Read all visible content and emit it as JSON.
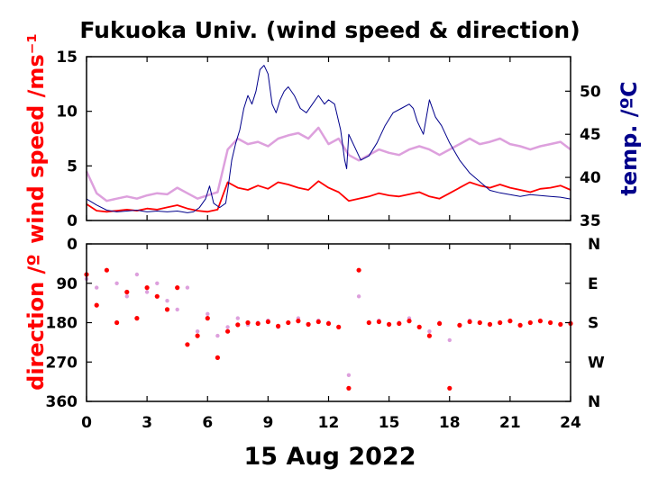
{
  "chart_data": [
    {
      "type": "line",
      "title": "Fukuoka Univ. (wind speed & direction)",
      "ylabel": "wind speed /ms⁻¹",
      "y2label": "temp. /ºC",
      "xlabel": "15 Aug 2022",
      "xlim": [
        0,
        24
      ],
      "ylim": [
        0,
        15
      ],
      "y2lim": [
        35,
        54
      ],
      "xticks": [
        "0",
        "3",
        "6",
        "9",
        "12",
        "15",
        "18",
        "21",
        "24"
      ],
      "yticks": [
        "0",
        "5",
        "10",
        "15"
      ],
      "y2ticks": [
        "35",
        "40",
        "45",
        "50"
      ],
      "series": [
        {
          "axis": "left",
          "color": "#dda0dd",
          "x": [
            0,
            0.5,
            1,
            1.5,
            2,
            2.5,
            3,
            3.5,
            4,
            4.5,
            5,
            5.5,
            6,
            6.5,
            7,
            7.5,
            8,
            8.5,
            9,
            9.5,
            10,
            10.5,
            11,
            11.5,
            12,
            12.5,
            13,
            13.5,
            14,
            14.5,
            15,
            15.5,
            16,
            16.5,
            17,
            17.5,
            18,
            18.5,
            19,
            19.5,
            20,
            20.5,
            21,
            21.5,
            22,
            22.5,
            23,
            23.5,
            24
          ],
          "values": [
            4.5,
            2.5,
            1.8,
            2.0,
            2.2,
            2.0,
            2.3,
            2.5,
            2.4,
            3.0,
            2.5,
            2.0,
            2.3,
            2.6,
            6.5,
            7.5,
            7.0,
            7.2,
            6.8,
            7.5,
            7.8,
            8.0,
            7.5,
            8.5,
            7.0,
            7.5,
            6.0,
            5.5,
            6.0,
            6.5,
            6.2,
            6.0,
            6.5,
            6.8,
            6.5,
            6.0,
            6.5,
            7.0,
            7.5,
            7.0,
            7.2,
            7.5,
            7.0,
            6.8,
            6.5,
            6.8,
            7.0,
            7.2,
            6.5
          ]
        },
        {
          "axis": "left",
          "color": "#ff0000",
          "x": [
            0,
            0.5,
            1,
            1.5,
            2,
            2.5,
            3,
            3.5,
            4,
            4.5,
            5,
            5.5,
            6,
            6.5,
            7,
            7.5,
            8,
            8.5,
            9,
            9.5,
            10,
            10.5,
            11,
            11.5,
            12,
            12.5,
            13,
            13.5,
            14,
            14.5,
            15,
            15.5,
            16,
            16.5,
            17,
            17.5,
            18,
            18.5,
            19,
            19.5,
            20,
            20.5,
            21,
            21.5,
            22,
            22.5,
            23,
            23.5,
            24
          ],
          "values": [
            1.5,
            0.9,
            0.8,
            0.9,
            1.0,
            0.9,
            1.1,
            1.0,
            1.2,
            1.4,
            1.1,
            0.9,
            0.8,
            1.0,
            3.5,
            3.0,
            2.8,
            3.2,
            2.9,
            3.5,
            3.3,
            3.0,
            2.8,
            3.6,
            3.0,
            2.6,
            1.8,
            2.0,
            2.2,
            2.5,
            2.3,
            2.2,
            2.4,
            2.6,
            2.2,
            2.0,
            2.5,
            3.0,
            3.5,
            3.2,
            3.0,
            3.3,
            3.0,
            2.8,
            2.6,
            2.9,
            3.0,
            3.2,
            2.8
          ]
        },
        {
          "axis": "right",
          "color": "#00008b",
          "x": [
            0,
            0.5,
            1,
            1.5,
            2,
            2.5,
            3,
            3.5,
            4,
            4.5,
            5,
            5.3,
            5.6,
            5.9,
            6.1,
            6.3,
            6.6,
            6.9,
            7.0,
            7.2,
            7.4,
            7.6,
            7.8,
            8.0,
            8.2,
            8.4,
            8.6,
            8.8,
            9.0,
            9.2,
            9.4,
            9.6,
            9.8,
            10.0,
            10.3,
            10.6,
            10.9,
            11.2,
            11.5,
            11.8,
            12.0,
            12.3,
            12.6,
            12.8,
            12.9,
            13.0,
            13.1,
            13.3,
            13.6,
            14.0,
            14.4,
            14.8,
            15.2,
            15.6,
            16.0,
            16.2,
            16.4,
            16.7,
            17.0,
            17.3,
            17.6,
            18.0,
            18.5,
            19.0,
            19.5,
            20.0,
            20.5,
            21.0,
            21.5,
            22.0,
            22.5,
            23.0,
            23.5,
            24
          ],
          "values": [
            37.5,
            36.8,
            36.2,
            36.0,
            36.1,
            36.2,
            36.0,
            36.1,
            36.0,
            36.1,
            35.9,
            36.0,
            36.5,
            37.5,
            39.0,
            37.0,
            36.5,
            37.0,
            38.5,
            42.0,
            44.0,
            45.5,
            48.0,
            49.5,
            48.5,
            50.0,
            52.5,
            53.0,
            52.0,
            48.5,
            47.5,
            49.0,
            50.0,
            50.5,
            49.5,
            48.0,
            47.5,
            48.5,
            49.5,
            48.5,
            49.0,
            48.5,
            45.5,
            42.0,
            41.0,
            45.0,
            44.5,
            43.5,
            42.0,
            42.5,
            44.0,
            46.0,
            47.5,
            48.0,
            48.5,
            48.0,
            46.5,
            45.0,
            49.0,
            47.0,
            46.0,
            44.0,
            42.0,
            40.5,
            39.5,
            38.5,
            38.2,
            38.0,
            37.8,
            38.0,
            37.9,
            37.8,
            37.7,
            37.5
          ]
        }
      ]
    },
    {
      "type": "scatter",
      "ylabel": "direction /º",
      "xlabel": "15 Aug 2022",
      "xlim": [
        0,
        24
      ],
      "ylim": [
        360,
        0
      ],
      "xticks": [
        "0",
        "3",
        "6",
        "9",
        "12",
        "15",
        "18",
        "21",
        "24"
      ],
      "yticks": [
        "0",
        "90",
        "180",
        "270",
        "360"
      ],
      "y2ticks": [
        "N",
        "E",
        "S",
        "W",
        "N"
      ],
      "series": [
        {
          "color": "#dda0dd",
          "x": [
            0,
            0.5,
            1,
            1.5,
            2,
            2.5,
            3,
            3.5,
            4,
            4.5,
            5,
            5.5,
            6,
            6.5,
            7,
            7.5,
            8,
            8.5,
            9,
            9.5,
            10,
            10.5,
            11,
            11.5,
            12,
            12.5,
            13,
            13.5,
            14,
            14.5,
            15,
            15.5,
            16,
            16.5,
            17,
            17.5,
            18,
            18.5,
            19,
            19.5,
            20,
            20.5,
            21,
            21.5,
            22,
            22.5,
            23,
            23.5,
            24
          ],
          "values": [
            80,
            100,
            60,
            90,
            120,
            70,
            110,
            90,
            130,
            150,
            100,
            200,
            160,
            210,
            190,
            170,
            185,
            180,
            175,
            190,
            180,
            170,
            185,
            175,
            180,
            190,
            300,
            120,
            180,
            175,
            185,
            180,
            170,
            190,
            200,
            180,
            220,
            185,
            175,
            180,
            185,
            180,
            175,
            185,
            180,
            175,
            180,
            185,
            180
          ]
        },
        {
          "color": "#ff0000",
          "x": [
            0,
            0.5,
            1,
            1.5,
            2,
            2.5,
            3,
            3.5,
            4,
            4.5,
            5,
            5.5,
            6,
            6.5,
            7,
            7.5,
            8,
            8.5,
            9,
            9.5,
            10,
            10.5,
            11,
            11.5,
            12,
            12.5,
            13,
            13.5,
            14,
            14.5,
            15,
            15.5,
            16,
            16.5,
            17,
            17.5,
            18,
            18.5,
            19,
            19.5,
            20,
            20.5,
            21,
            21.5,
            22,
            22.5,
            23,
            23.5,
            24
          ],
          "values": [
            70,
            140,
            60,
            180,
            110,
            170,
            100,
            120,
            150,
            100,
            230,
            210,
            170,
            260,
            200,
            185,
            180,
            182,
            178,
            188,
            180,
            176,
            184,
            178,
            182,
            190,
            330,
            60,
            180,
            178,
            184,
            182,
            176,
            190,
            210,
            182,
            330,
            186,
            178,
            180,
            184,
            180,
            176,
            186,
            180,
            176,
            180,
            184,
            182
          ]
        }
      ]
    }
  ]
}
